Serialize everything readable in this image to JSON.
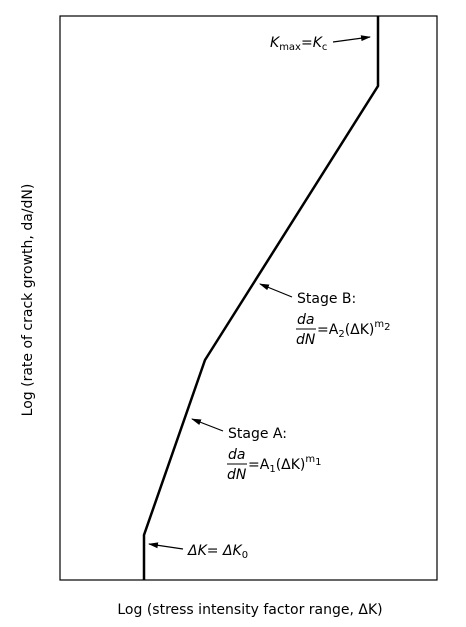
{
  "diagram": {
    "x_label": "Log (stress intensity factor range, ΔK)",
    "y_label": "Log (rate of crack growth, da/dN)",
    "kmax": {
      "parts": [
        "K",
        "max",
        "=",
        "K",
        "c"
      ]
    },
    "stage_b": {
      "label": "Stage B:",
      "numerator": "da",
      "denominator": "dN",
      "parts": [
        "=A",
        "2",
        "(ΔK)",
        "m",
        "2"
      ]
    },
    "stage_a": {
      "label": "Stage A:",
      "numerator": "da",
      "denominator": "dN",
      "parts": [
        "=A",
        "1",
        "(ΔK)",
        "m",
        "1"
      ]
    },
    "threshold": {
      "parts": [
        "ΔK",
        "= ΔK",
        "0"
      ]
    }
  }
}
